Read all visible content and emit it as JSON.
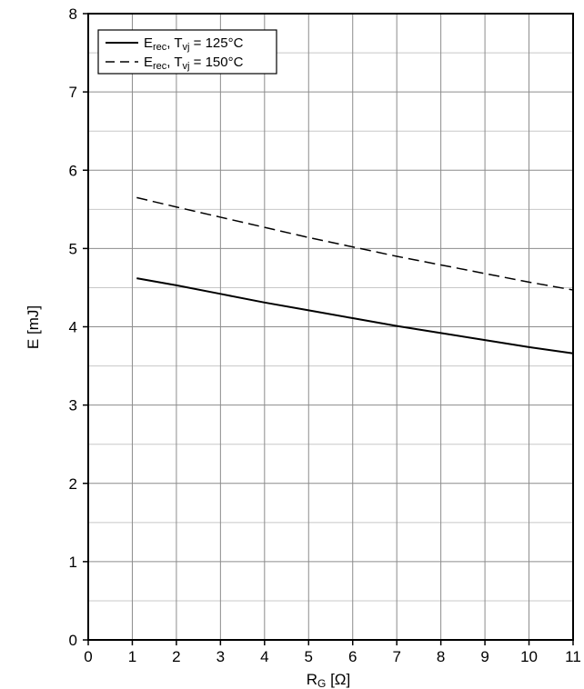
{
  "chart_data": {
    "type": "line",
    "xlabel": "R",
    "xlabel_sub": "G",
    "xlabel_unit": " [Ω]",
    "ylabel": "E [mJ]",
    "xlim": [
      0,
      11
    ],
    "ylim": [
      0,
      8
    ],
    "x_ticks": [
      "0",
      "1",
      "2",
      "3",
      "4",
      "5",
      "6",
      "7",
      "8",
      "9",
      "10",
      "11"
    ],
    "y_ticks": [
      "0",
      "1",
      "2",
      "3",
      "4",
      "5",
      "6",
      "7",
      "8"
    ],
    "grid": true,
    "minor_grid_y_step": 0.5,
    "legend_position": "top-left",
    "series": [
      {
        "name_main": "E",
        "name_sub": "rec",
        "name_mid": ", T",
        "name_sub2": "vj",
        "name_end": " = 125°C",
        "style": "solid",
        "color": "#000000",
        "x": [
          1.1,
          2,
          3,
          4,
          5,
          6,
          7,
          8,
          9,
          10,
          11
        ],
        "y": [
          4.62,
          4.53,
          4.42,
          4.31,
          4.21,
          4.11,
          4.01,
          3.92,
          3.83,
          3.74,
          3.66
        ]
      },
      {
        "name_main": "E",
        "name_sub": "rec",
        "name_mid": ", T",
        "name_sub2": "vj",
        "name_end": " = 150°C",
        "style": "dashed",
        "color": "#000000",
        "x": [
          1.1,
          2,
          3,
          4,
          5,
          6,
          7,
          8,
          9,
          10,
          11
        ],
        "y": [
          5.65,
          5.53,
          5.4,
          5.27,
          5.14,
          5.02,
          4.9,
          4.79,
          4.68,
          4.57,
          4.47
        ]
      }
    ]
  }
}
